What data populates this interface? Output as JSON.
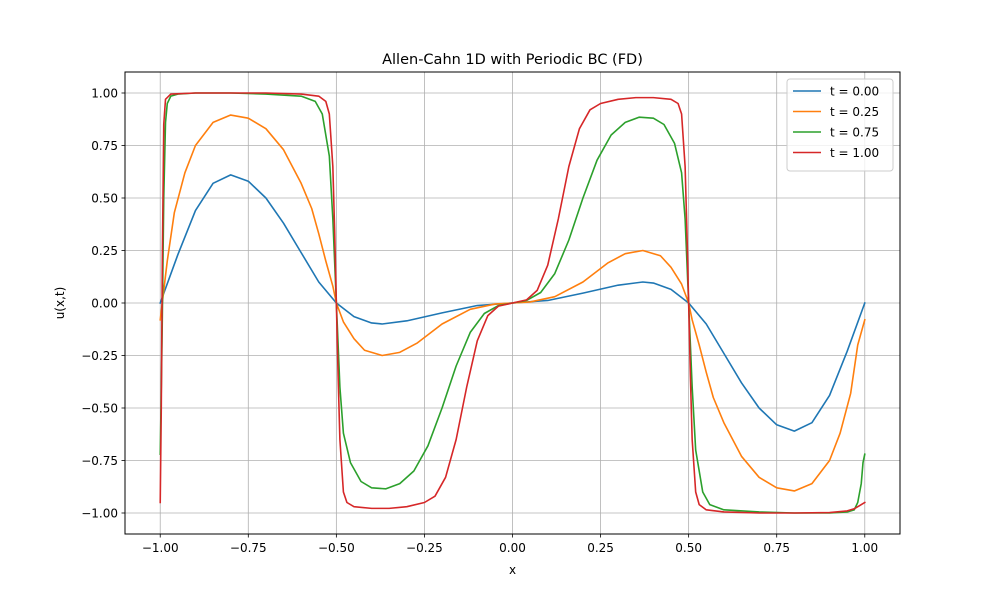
{
  "chart_data": {
    "type": "line",
    "title": "Allen-Cahn 1D with Periodic BC (FD)",
    "xlabel": "x",
    "ylabel": "u(x,t)",
    "xlim": [
      -1.1,
      1.1
    ],
    "ylim": [
      -1.1,
      1.1
    ],
    "x_ticks": [
      -1.0,
      -0.75,
      -0.5,
      -0.25,
      0.0,
      0.25,
      0.5,
      0.75,
      1.0
    ],
    "x_tick_labels": [
      "−1.00",
      "−0.75",
      "−0.50",
      "−0.25",
      "0.00",
      "0.25",
      "0.50",
      "0.75",
      "1.00"
    ],
    "y_ticks": [
      -1.0,
      -0.75,
      -0.5,
      -0.25,
      0.0,
      0.25,
      0.5,
      0.75,
      1.0
    ],
    "y_tick_labels": [
      "−1.00",
      "−0.75",
      "−0.50",
      "−0.25",
      "0.00",
      "0.25",
      "0.50",
      "0.75",
      "1.00"
    ],
    "grid": true,
    "legend_position": "top-right",
    "series": [
      {
        "name": "t = 0.00",
        "color": "#1f77b4",
        "points": [
          [
            -1.0,
            0.0
          ],
          [
            -0.95,
            0.23
          ],
          [
            -0.9,
            0.44
          ],
          [
            -0.85,
            0.57
          ],
          [
            -0.8,
            0.61
          ],
          [
            -0.75,
            0.58
          ],
          [
            -0.7,
            0.5
          ],
          [
            -0.65,
            0.38
          ],
          [
            -0.6,
            0.24
          ],
          [
            -0.55,
            0.1
          ],
          [
            -0.5,
            0.0
          ],
          [
            -0.45,
            -0.065
          ],
          [
            -0.4,
            -0.095
          ],
          [
            -0.37,
            -0.1
          ],
          [
            -0.3,
            -0.085
          ],
          [
            -0.2,
            -0.047
          ],
          [
            -0.1,
            -0.012
          ],
          [
            0.0,
            0.0
          ],
          [
            0.1,
            0.012
          ],
          [
            0.2,
            0.047
          ],
          [
            0.3,
            0.085
          ],
          [
            0.37,
            0.1
          ],
          [
            0.4,
            0.095
          ],
          [
            0.45,
            0.065
          ],
          [
            0.5,
            0.0
          ],
          [
            0.55,
            -0.1
          ],
          [
            0.6,
            -0.24
          ],
          [
            0.65,
            -0.38
          ],
          [
            0.7,
            -0.5
          ],
          [
            0.75,
            -0.58
          ],
          [
            0.8,
            -0.61
          ],
          [
            0.85,
            -0.57
          ],
          [
            0.9,
            -0.44
          ],
          [
            0.95,
            -0.23
          ],
          [
            1.0,
            0.0
          ]
        ]
      },
      {
        "name": "t = 0.25",
        "color": "#ff7f0e",
        "points": [
          [
            -1.0,
            -0.08
          ],
          [
            -0.98,
            0.2
          ],
          [
            -0.96,
            0.43
          ],
          [
            -0.93,
            0.62
          ],
          [
            -0.9,
            0.75
          ],
          [
            -0.85,
            0.86
          ],
          [
            -0.8,
            0.895
          ],
          [
            -0.75,
            0.88
          ],
          [
            -0.7,
            0.83
          ],
          [
            -0.65,
            0.73
          ],
          [
            -0.6,
            0.57
          ],
          [
            -0.57,
            0.45
          ],
          [
            -0.55,
            0.33
          ],
          [
            -0.53,
            0.2
          ],
          [
            -0.51,
            0.08
          ],
          [
            -0.5,
            0.0
          ],
          [
            -0.48,
            -0.09
          ],
          [
            -0.45,
            -0.17
          ],
          [
            -0.42,
            -0.225
          ],
          [
            -0.37,
            -0.25
          ],
          [
            -0.32,
            -0.235
          ],
          [
            -0.27,
            -0.19
          ],
          [
            -0.2,
            -0.1
          ],
          [
            -0.12,
            -0.03
          ],
          [
            -0.05,
            -0.005
          ],
          [
            0.0,
            0.0
          ],
          [
            0.05,
            0.005
          ],
          [
            0.12,
            0.03
          ],
          [
            0.2,
            0.1
          ],
          [
            0.27,
            0.19
          ],
          [
            0.32,
            0.235
          ],
          [
            0.37,
            0.25
          ],
          [
            0.42,
            0.225
          ],
          [
            0.45,
            0.17
          ],
          [
            0.48,
            0.09
          ],
          [
            0.5,
            0.0
          ],
          [
            0.51,
            -0.08
          ],
          [
            0.53,
            -0.2
          ],
          [
            0.55,
            -0.33
          ],
          [
            0.57,
            -0.45
          ],
          [
            0.6,
            -0.57
          ],
          [
            0.65,
            -0.73
          ],
          [
            0.7,
            -0.83
          ],
          [
            0.75,
            -0.88
          ],
          [
            0.8,
            -0.895
          ],
          [
            0.85,
            -0.86
          ],
          [
            0.9,
            -0.75
          ],
          [
            0.93,
            -0.62
          ],
          [
            0.96,
            -0.43
          ],
          [
            0.98,
            -0.2
          ],
          [
            1.0,
            -0.08
          ]
        ]
      },
      {
        "name": "t = 0.75",
        "color": "#2ca02c",
        "points": [
          [
            -1.0,
            -0.72
          ],
          [
            -0.995,
            -0.2
          ],
          [
            -0.99,
            0.5
          ],
          [
            -0.985,
            0.86
          ],
          [
            -0.98,
            0.95
          ],
          [
            -0.97,
            0.985
          ],
          [
            -0.95,
            0.995
          ],
          [
            -0.9,
            1.0
          ],
          [
            -0.8,
            1.0
          ],
          [
            -0.7,
            0.995
          ],
          [
            -0.6,
            0.985
          ],
          [
            -0.56,
            0.96
          ],
          [
            -0.54,
            0.9
          ],
          [
            -0.52,
            0.7
          ],
          [
            -0.51,
            0.4
          ],
          [
            -0.5,
            0.0
          ],
          [
            -0.49,
            -0.4
          ],
          [
            -0.48,
            -0.62
          ],
          [
            -0.46,
            -0.76
          ],
          [
            -0.43,
            -0.85
          ],
          [
            -0.4,
            -0.88
          ],
          [
            -0.36,
            -0.885
          ],
          [
            -0.32,
            -0.86
          ],
          [
            -0.28,
            -0.8
          ],
          [
            -0.24,
            -0.68
          ],
          [
            -0.2,
            -0.5
          ],
          [
            -0.16,
            -0.3
          ],
          [
            -0.12,
            -0.14
          ],
          [
            -0.08,
            -0.05
          ],
          [
            -0.04,
            -0.012
          ],
          [
            0.0,
            0.0
          ],
          [
            0.04,
            0.012
          ],
          [
            0.08,
            0.05
          ],
          [
            0.12,
            0.14
          ],
          [
            0.16,
            0.3
          ],
          [
            0.2,
            0.5
          ],
          [
            0.24,
            0.68
          ],
          [
            0.28,
            0.8
          ],
          [
            0.32,
            0.86
          ],
          [
            0.36,
            0.885
          ],
          [
            0.4,
            0.88
          ],
          [
            0.43,
            0.85
          ],
          [
            0.46,
            0.76
          ],
          [
            0.48,
            0.62
          ],
          [
            0.49,
            0.4
          ],
          [
            0.5,
            0.0
          ],
          [
            0.51,
            -0.4
          ],
          [
            0.52,
            -0.7
          ],
          [
            0.54,
            -0.9
          ],
          [
            0.56,
            -0.96
          ],
          [
            0.6,
            -0.985
          ],
          [
            0.7,
            -0.995
          ],
          [
            0.8,
            -1.0
          ],
          [
            0.9,
            -1.0
          ],
          [
            0.95,
            -0.995
          ],
          [
            0.97,
            -0.985
          ],
          [
            0.98,
            -0.95
          ],
          [
            0.99,
            -0.86
          ],
          [
            0.995,
            -0.76
          ],
          [
            1.0,
            -0.72
          ]
        ]
      },
      {
        "name": "t = 1.00",
        "color": "#d62728",
        "points": [
          [
            -1.0,
            -0.95
          ],
          [
            -0.997,
            -0.5
          ],
          [
            -0.994,
            0.2
          ],
          [
            -0.99,
            0.85
          ],
          [
            -0.985,
            0.97
          ],
          [
            -0.97,
            0.995
          ],
          [
            -0.9,
            1.0
          ],
          [
            -0.8,
            1.0
          ],
          [
            -0.7,
            1.0
          ],
          [
            -0.6,
            0.995
          ],
          [
            -0.55,
            0.985
          ],
          [
            -0.53,
            0.96
          ],
          [
            -0.52,
            0.9
          ],
          [
            -0.51,
            0.65
          ],
          [
            -0.505,
            0.35
          ],
          [
            -0.5,
            0.0
          ],
          [
            -0.495,
            -0.35
          ],
          [
            -0.49,
            -0.65
          ],
          [
            -0.48,
            -0.9
          ],
          [
            -0.47,
            -0.95
          ],
          [
            -0.45,
            -0.97
          ],
          [
            -0.4,
            -0.978
          ],
          [
            -0.35,
            -0.978
          ],
          [
            -0.3,
            -0.97
          ],
          [
            -0.25,
            -0.95
          ],
          [
            -0.22,
            -0.92
          ],
          [
            -0.19,
            -0.83
          ],
          [
            -0.16,
            -0.65
          ],
          [
            -0.13,
            -0.4
          ],
          [
            -0.1,
            -0.18
          ],
          [
            -0.07,
            -0.06
          ],
          [
            -0.04,
            -0.015
          ],
          [
            0.0,
            0.0
          ],
          [
            0.04,
            0.015
          ],
          [
            0.07,
            0.06
          ],
          [
            0.1,
            0.18
          ],
          [
            0.13,
            0.4
          ],
          [
            0.16,
            0.65
          ],
          [
            0.19,
            0.83
          ],
          [
            0.22,
            0.92
          ],
          [
            0.25,
            0.95
          ],
          [
            0.3,
            0.97
          ],
          [
            0.35,
            0.978
          ],
          [
            0.4,
            0.978
          ],
          [
            0.45,
            0.97
          ],
          [
            0.47,
            0.95
          ],
          [
            0.48,
            0.9
          ],
          [
            0.49,
            0.65
          ],
          [
            0.495,
            0.35
          ],
          [
            0.5,
            0.0
          ],
          [
            0.505,
            -0.35
          ],
          [
            0.51,
            -0.65
          ],
          [
            0.52,
            -0.9
          ],
          [
            0.53,
            -0.96
          ],
          [
            0.55,
            -0.985
          ],
          [
            0.6,
            -0.995
          ],
          [
            0.7,
            -1.0
          ],
          [
            0.8,
            -1.0
          ],
          [
            0.9,
            -0.998
          ],
          [
            0.95,
            -0.99
          ],
          [
            0.97,
            -0.98
          ],
          [
            0.985,
            -0.965
          ],
          [
            1.0,
            -0.95
          ]
        ]
      }
    ]
  }
}
